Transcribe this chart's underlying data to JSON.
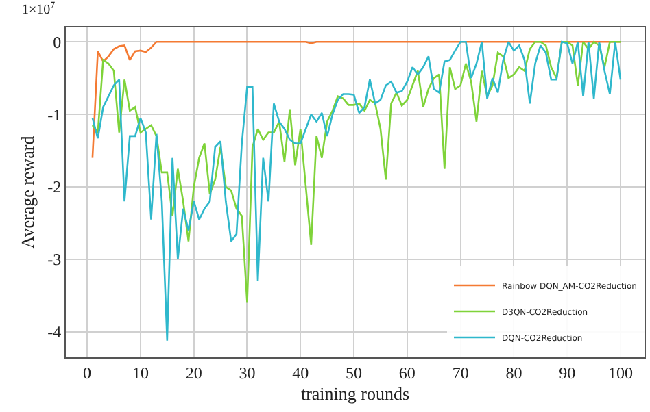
{
  "chart_data": {
    "type": "line",
    "xlabel": "training rounds",
    "ylabel": "Average reward",
    "annotations": [
      "1×10$^{7}$"
    ],
    "x": [
      1,
      2,
      3,
      4,
      5,
      6,
      7,
      8,
      9,
      10,
      11,
      12,
      13,
      14,
      15,
      16,
      17,
      18,
      19,
      20,
      21,
      22,
      23,
      24,
      25,
      26,
      27,
      28,
      29,
      30,
      31,
      32,
      33,
      34,
      35,
      36,
      37,
      38,
      39,
      40,
      41,
      42,
      43,
      44,
      45,
      46,
      47,
      48,
      49,
      50,
      51,
      52,
      53,
      54,
      55,
      56,
      57,
      58,
      59,
      60,
      61,
      62,
      63,
      64,
      65,
      66,
      67,
      68,
      69,
      70,
      71,
      72,
      73,
      74,
      75,
      76,
      77,
      78,
      79,
      80,
      81,
      82,
      83,
      84,
      85,
      86,
      87,
      88,
      89,
      90,
      91,
      92,
      93,
      94,
      95,
      96,
      97,
      98,
      99,
      100
    ],
    "series": [
      {
        "name": "Rainbow DQN_AM-CO2Reduction",
        "color": "#f47a33",
        "values": [
          -1.6,
          -0.13,
          -0.27,
          -0.2,
          -0.1,
          -0.06,
          -0.05,
          -0.25,
          -0.13,
          -0.12,
          -0.14,
          -0.08,
          0,
          0,
          0,
          0,
          0,
          0,
          0,
          0,
          0,
          0,
          0,
          0,
          0,
          0,
          0,
          0,
          0,
          0,
          0,
          0,
          0,
          0,
          0,
          0,
          0,
          0,
          0,
          0,
          0,
          -0.02,
          0,
          0,
          0,
          0,
          0,
          0,
          0,
          0,
          0,
          0,
          0,
          0,
          0,
          0,
          0,
          0,
          0,
          0,
          0,
          0,
          0,
          0,
          0,
          0,
          0,
          0,
          0,
          0,
          0,
          0,
          0,
          0,
          0,
          0,
          0,
          0,
          0,
          0,
          0,
          0,
          0,
          0,
          0,
          0,
          0,
          0,
          0,
          0,
          0,
          0,
          0,
          0,
          0,
          0,
          0,
          0,
          0,
          0
        ]
      },
      {
        "name": "D3QN-CO2Reduction",
        "color": "#7fd33a",
        "values": [
          -1.15,
          -1.25,
          -0.25,
          -0.3,
          -0.4,
          -1.25,
          -0.52,
          -0.95,
          -0.9,
          -1.25,
          -1.2,
          -1.15,
          -1.3,
          -1.8,
          -1.8,
          -2.4,
          -1.75,
          -2.2,
          -2.75,
          -2.0,
          -1.6,
          -1.4,
          -2.1,
          -1.9,
          -1.45,
          -2.0,
          -2.05,
          -2.3,
          -2.4,
          -3.6,
          -1.45,
          -1.2,
          -1.35,
          -1.25,
          -1.25,
          -1.1,
          -1.65,
          -0.93,
          -1.7,
          -1.2,
          -2.0,
          -2.8,
          -1.3,
          -1.6,
          -1.1,
          -0.95,
          -0.75,
          -0.78,
          -0.87,
          -0.87,
          -0.85,
          -0.95,
          -0.8,
          -0.85,
          -1.2,
          -1.9,
          -0.85,
          -0.7,
          -0.88,
          -0.8,
          -0.6,
          -0.4,
          -0.9,
          -0.65,
          -0.5,
          -0.45,
          -1.75,
          -0.35,
          -0.65,
          -0.6,
          -0.3,
          -0.55,
          -1.1,
          -0.4,
          -0.75,
          -0.6,
          -0.15,
          -0.2,
          -0.5,
          -0.45,
          -0.35,
          -0.4,
          -0.1,
          0,
          0,
          -0.05,
          -0.35,
          -0.5,
          0,
          0,
          -0.05,
          -0.6,
          0,
          -0.1,
          0,
          -0.05,
          -0.35,
          0,
          0,
          0
        ]
      },
      {
        "name": "DQN-CO2Reduction",
        "color": "#2fb8cc",
        "values": [
          -1.05,
          -1.33,
          -0.9,
          -0.75,
          -0.6,
          -0.52,
          -2.2,
          -1.3,
          -1.3,
          -1.05,
          -1.25,
          -2.45,
          -1.27,
          -2.2,
          -4.12,
          -1.6,
          -3.0,
          -2.3,
          -2.6,
          -2.2,
          -2.45,
          -2.3,
          -2.2,
          -1.45,
          -1.37,
          -2.2,
          -2.75,
          -2.65,
          -1.4,
          -0.62,
          -0.62,
          -3.3,
          -1.6,
          -2.2,
          -0.85,
          -1.1,
          -1.2,
          -1.35,
          -1.4,
          -1.4,
          -1.2,
          -1.0,
          -1.1,
          -0.98,
          -1.3,
          -1.0,
          -0.8,
          -0.72,
          -0.72,
          -0.73,
          -0.98,
          -0.9,
          -0.52,
          -0.85,
          -0.8,
          -0.6,
          -0.55,
          -0.7,
          -0.68,
          -0.55,
          -0.35,
          -0.45,
          -0.35,
          -0.2,
          -0.65,
          -0.7,
          -0.27,
          -0.25,
          -0.12,
          0,
          0,
          -0.5,
          -0.3,
          0,
          -0.78,
          -0.5,
          -0.7,
          -0.25,
          0,
          -0.12,
          -0.05,
          -0.25,
          -0.85,
          -0.3,
          -0.05,
          -0.15,
          -0.52,
          -0.52,
          0,
          -0.02,
          -0.3,
          0,
          -0.75,
          0,
          -0.78,
          0,
          -0.4,
          -0.72,
          0,
          -0.52
        ]
      }
    ],
    "xlim": [
      -4,
      104.5
    ],
    "xticks": [
      0,
      10,
      20,
      30,
      40,
      50,
      60,
      70,
      80,
      90,
      100
    ],
    "ylim": [
      -4.35,
      0.2
    ],
    "yticks": [
      0,
      -1,
      -2,
      -3,
      -4
    ],
    "grid": true,
    "legend": "bottom right",
    "marker": "none",
    "line_style": "solid"
  }
}
